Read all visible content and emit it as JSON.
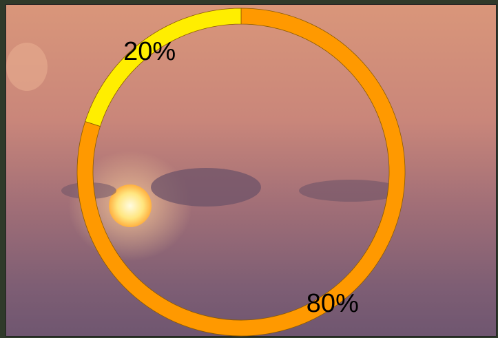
{
  "chart_data": {
    "type": "donut",
    "values": [
      80,
      20
    ],
    "value_labels": [
      "80%",
      "20%"
    ],
    "colors": [
      "#ff9900",
      "#ffee00"
    ]
  }
}
